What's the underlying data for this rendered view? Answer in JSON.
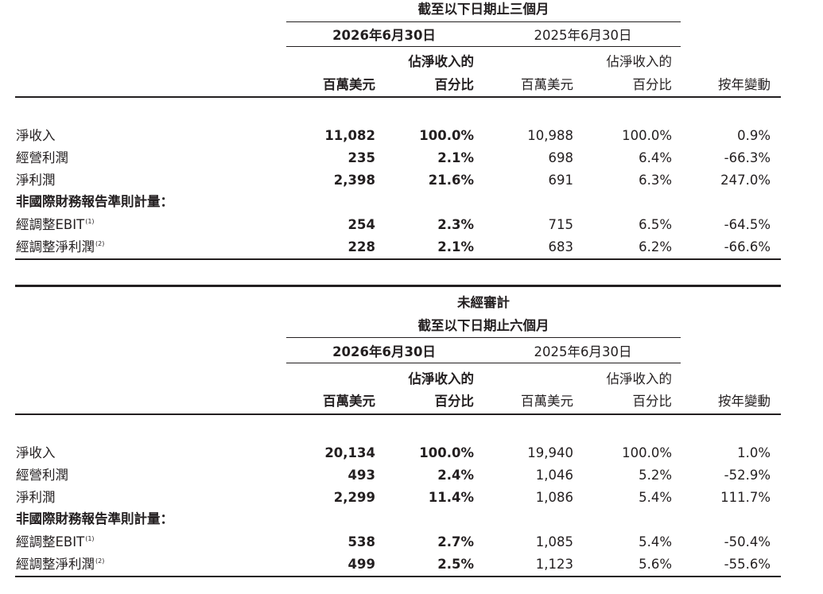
{
  "table1": {
    "period_header": "截至以下日期止三個月",
    "current_date": "2026年6月30日",
    "prior_date": "2025年6月30日",
    "col_headers": {
      "cur_amount": "百萬美元",
      "cur_pct_line1": "佔淨收入的",
      "cur_pct_line2": "百分比",
      "prior_amount": "百萬美元",
      "prior_pct_line1": "佔淨收入的",
      "prior_pct_line2": "百分比",
      "yoy": "按年變動"
    },
    "rows": [
      {
        "label": "淨收入",
        "cur_amount": "11,082",
        "cur_pct": "100.0%",
        "prior_amount": "10,988",
        "prior_pct": "100.0%",
        "yoy": "0.9%"
      },
      {
        "label": "經營利潤",
        "cur_amount": "235",
        "cur_pct": "2.1%",
        "prior_amount": "698",
        "prior_pct": "6.4%",
        "yoy": "-66.3%"
      },
      {
        "label": "淨利潤",
        "cur_amount": "2,398",
        "cur_pct": "21.6%",
        "prior_amount": "691",
        "prior_pct": "6.3%",
        "yoy": "247.0%"
      }
    ],
    "non_gaap_heading": "非國際財務報告準則計量：",
    "non_gaap_rows": [
      {
        "label": "經調整EBIT",
        "note": "(1)",
        "cur_amount": "254",
        "cur_pct": "2.3%",
        "prior_amount": "715",
        "prior_pct": "6.5%",
        "yoy": "-64.5%"
      },
      {
        "label": "經調整淨利潤",
        "note": "(2)",
        "cur_amount": "228",
        "cur_pct": "2.1%",
        "prior_amount": "683",
        "prior_pct": "6.2%",
        "yoy": "-66.6%"
      }
    ]
  },
  "table2": {
    "unaudited": "未經審計",
    "period_header": "截至以下日期止六個月",
    "current_date": "2026年6月30日",
    "prior_date": "2025年6月30日",
    "col_headers": {
      "cur_amount": "百萬美元",
      "cur_pct_line1": "佔淨收入的",
      "cur_pct_line2": "百分比",
      "prior_amount": "百萬美元",
      "prior_pct_line1": "佔淨收入的",
      "prior_pct_line2": "百分比",
      "yoy": "按年變動"
    },
    "rows": [
      {
        "label": "淨收入",
        "cur_amount": "20,134",
        "cur_pct": "100.0%",
        "prior_amount": "19,940",
        "prior_pct": "100.0%",
        "yoy": "1.0%"
      },
      {
        "label": "經營利潤",
        "cur_amount": "493",
        "cur_pct": "2.4%",
        "prior_amount": "1,046",
        "prior_pct": "5.2%",
        "yoy": "-52.9%"
      },
      {
        "label": "淨利潤",
        "cur_amount": "2,299",
        "cur_pct": "11.4%",
        "prior_amount": "1,086",
        "prior_pct": "5.4%",
        "yoy": "111.7%"
      }
    ],
    "non_gaap_heading": "非國際財務報告準則計量：",
    "non_gaap_rows": [
      {
        "label": "經調整EBIT",
        "note": "(1)",
        "cur_amount": "538",
        "cur_pct": "2.7%",
        "prior_amount": "1,085",
        "prior_pct": "5.4%",
        "yoy": "-50.4%"
      },
      {
        "label": "經調整淨利潤",
        "note": "(2)",
        "cur_amount": "499",
        "cur_pct": "2.5%",
        "prior_amount": "1,123",
        "prior_pct": "5.6%",
        "yoy": "-55.6%"
      }
    ]
  }
}
